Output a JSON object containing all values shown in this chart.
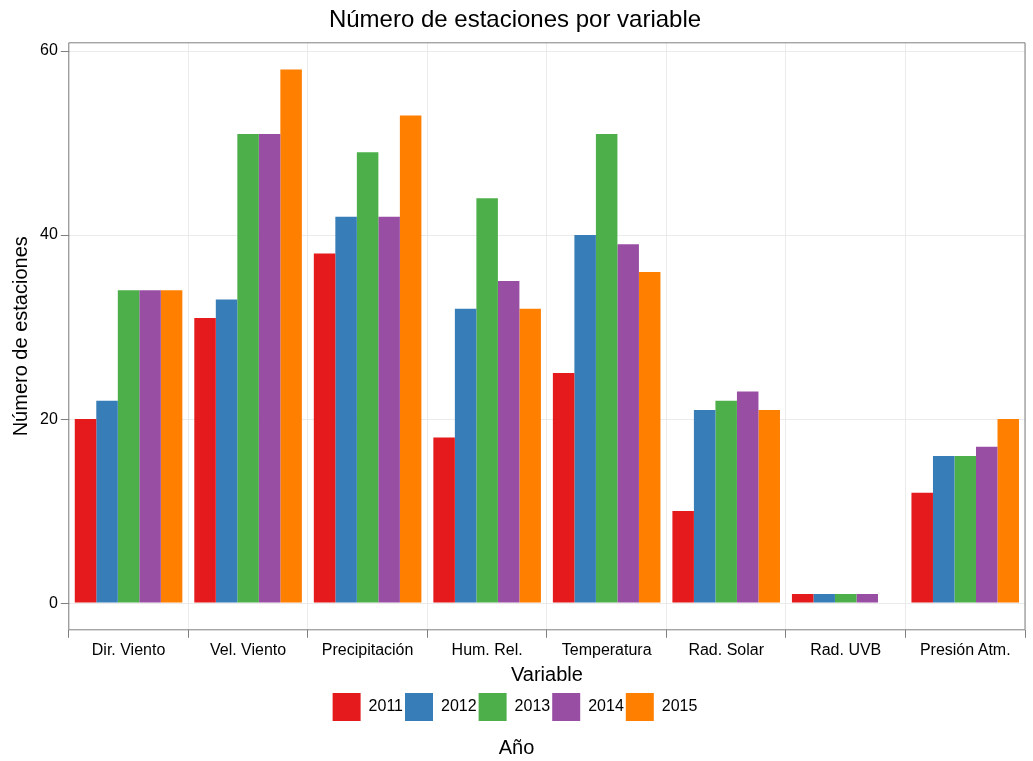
{
  "chart_data": {
    "type": "bar",
    "title": "Número de estaciones por variable",
    "xlabel": "Variable",
    "ylabel": "Número de estaciones",
    "legend_title": "Año",
    "categories": [
      "Dir. Viento",
      "Vel. Viento",
      "Precipitación",
      "Hum. Rel.",
      "Temperatura",
      "Rad. Solar",
      "Rad. UVB",
      "Presión Atm."
    ],
    "series": [
      {
        "name": "2011",
        "color": "#e41a1c",
        "values": [
          20,
          31,
          38,
          18,
          25,
          10,
          1,
          12
        ]
      },
      {
        "name": "2012",
        "color": "#377eb8",
        "values": [
          22,
          33,
          42,
          32,
          40,
          21,
          1,
          16
        ]
      },
      {
        "name": "2013",
        "color": "#4daf4a",
        "values": [
          34,
          51,
          49,
          44,
          51,
          22,
          1,
          16
        ]
      },
      {
        "name": "2014",
        "color": "#984ea3",
        "values": [
          34,
          51,
          42,
          35,
          39,
          23,
          1,
          17
        ]
      },
      {
        "name": "2015",
        "color": "#ff7f00",
        "values": [
          34,
          58,
          53,
          32,
          36,
          21,
          null,
          20
        ]
      }
    ],
    "ylim": [
      -2.9,
      60.9
    ],
    "yticks": [
      0,
      20,
      40,
      60
    ],
    "grid": true,
    "legend": "bottom"
  }
}
